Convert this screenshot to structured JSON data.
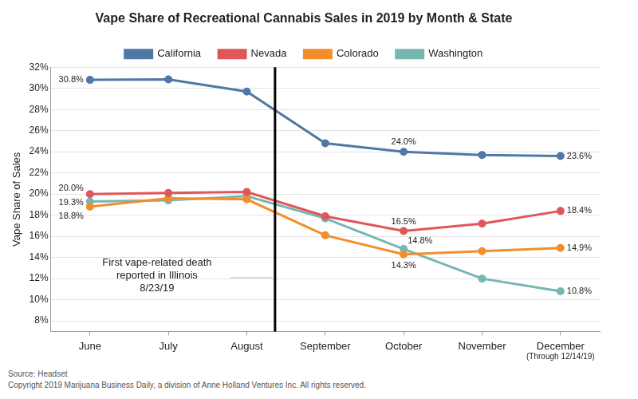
{
  "chart_data": {
    "type": "line",
    "title": "Vape Share of Recreational Cannabis Sales in 2019 by Month & State",
    "y_label": "Vape Share of Sales",
    "categories": [
      "June",
      "July",
      "August",
      "September",
      "October",
      "November",
      "December"
    ],
    "category_notes": [
      {
        "category": "December",
        "text": "(Through 12/14/19)"
      }
    ],
    "series": [
      {
        "name": "California",
        "color": "#4f78a6",
        "marker": "circle",
        "values": [
          30.8,
          30.85,
          29.7,
          24.8,
          24.0,
          23.7,
          23.6
        ],
        "value_labels": [
          "30.8%",
          null,
          null,
          null,
          "24.0%",
          null,
          "23.6%"
        ]
      },
      {
        "name": "Nevada",
        "color": "#e05659",
        "marker": "circle",
        "values": [
          20.0,
          20.1,
          20.2,
          17.9,
          16.5,
          17.2,
          18.4
        ],
        "value_labels": [
          "20.0%",
          null,
          null,
          null,
          "16.5%",
          null,
          "18.4%"
        ]
      },
      {
        "name": "Colorado",
        "color": "#f28e2b",
        "marker": "circle",
        "values": [
          18.8,
          19.6,
          19.5,
          16.1,
          14.3,
          14.6,
          14.9
        ],
        "value_labels": [
          "18.8%",
          null,
          null,
          null,
          "14.3%",
          null,
          "14.9%"
        ]
      },
      {
        "name": "Washington",
        "color": "#76b7b2",
        "marker": "circle",
        "values": [
          19.3,
          19.4,
          19.8,
          17.7,
          14.8,
          12.0,
          10.8
        ],
        "value_labels": [
          "19.3%",
          null,
          null,
          null,
          "14.8%",
          null,
          "10.8%"
        ]
      }
    ],
    "ylim": [
      7,
      32
    ],
    "yticks": [
      {
        "value": 8,
        "label": "8%"
      },
      {
        "value": 10,
        "label": "10%"
      },
      {
        "value": 12,
        "label": "12%"
      },
      {
        "value": 14,
        "label": "14%"
      },
      {
        "value": 16,
        "label": "16%"
      },
      {
        "value": 18,
        "label": "18%"
      },
      {
        "value": 20,
        "label": "20%"
      },
      {
        "value": 22,
        "label": "22%"
      },
      {
        "value": 24,
        "label": "24%"
      },
      {
        "value": 26,
        "label": "26%"
      },
      {
        "value": 28,
        "label": "28%"
      },
      {
        "value": 30,
        "label": "30%"
      },
      {
        "value": 32,
        "label": "32%"
      }
    ],
    "grid": true,
    "legend": "top",
    "data_labels": true,
    "event": {
      "after": "August",
      "text_lines": [
        "First vape-related death",
        "reported in Illinois",
        "8/23/19"
      ]
    },
    "source": "Source: Headset",
    "copyright": "Copyright 2019 Marijuana Business Daily, a division of Anne Holland Ventures Inc. All rights reserved."
  }
}
